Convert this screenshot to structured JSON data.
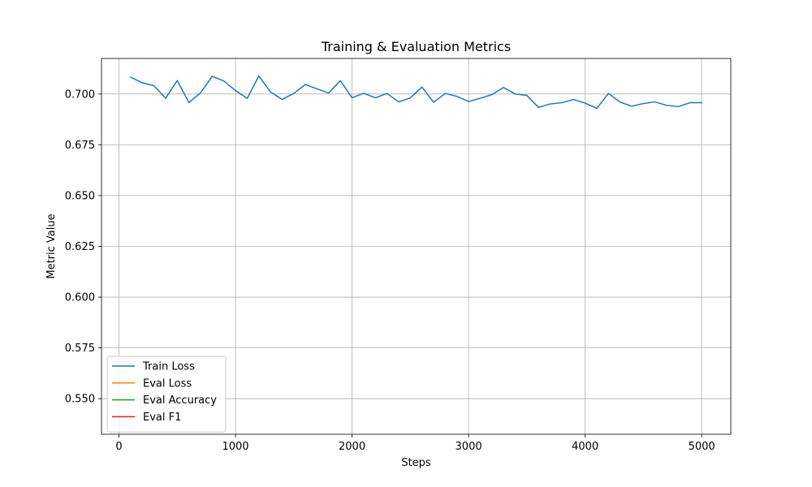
{
  "chart_data": {
    "type": "line",
    "title": "Training & Evaluation Metrics",
    "xlabel": "Steps",
    "ylabel": "Metric Value",
    "xlim": [
      -150,
      5250
    ],
    "ylim": [
      0.5325,
      0.7175
    ],
    "xticks": [
      0,
      1000,
      2000,
      3000,
      4000,
      5000
    ],
    "yticks": [
      0.55,
      0.575,
      0.6,
      0.625,
      0.65,
      0.675,
      0.7
    ],
    "xtick_labels": [
      "0",
      "1000",
      "2000",
      "3000",
      "4000",
      "5000"
    ],
    "ytick_labels": [
      "0.550",
      "0.575",
      "0.600",
      "0.625",
      "0.650",
      "0.675",
      "0.700"
    ],
    "grid": true,
    "legend_position": "lower-left",
    "series": [
      {
        "name": "Train Loss",
        "color": "#1f77b4",
        "x": [
          100,
          200,
          300,
          400,
          500,
          600,
          700,
          800,
          900,
          1000,
          1100,
          1200,
          1300,
          1400,
          1500,
          1600,
          1700,
          1800,
          1900,
          2000,
          2100,
          2200,
          2300,
          2400,
          2500,
          2600,
          2700,
          2800,
          2900,
          3000,
          3100,
          3200,
          3300,
          3400,
          3500,
          3600,
          3700,
          3800,
          3900,
          4000,
          4100,
          4200,
          4300,
          4400,
          4500,
          4600,
          4700,
          4800,
          4900,
          5000
        ],
        "y": [
          0.7083,
          0.7055,
          0.7041,
          0.6979,
          0.7066,
          0.6958,
          0.7006,
          0.7087,
          0.7064,
          0.7017,
          0.6978,
          0.7089,
          0.701,
          0.6973,
          0.7003,
          0.7047,
          0.7025,
          0.7005,
          0.7066,
          0.6981,
          0.7004,
          0.6981,
          0.7003,
          0.6961,
          0.6981,
          0.7034,
          0.6959,
          0.7003,
          0.6988,
          0.6963,
          0.6979,
          0.6997,
          0.7032,
          0.7,
          0.6993,
          0.6934,
          0.6951,
          0.6957,
          0.6973,
          0.6955,
          0.6929,
          0.7003,
          0.696,
          0.694,
          0.6953,
          0.6961,
          0.6944,
          0.6938,
          0.6957,
          0.6957
        ]
      },
      {
        "name": "Eval Loss",
        "color": "#ff7f0e",
        "x": [],
        "y": []
      },
      {
        "name": "Eval Accuracy",
        "color": "#2ca02c",
        "x": [],
        "y": []
      },
      {
        "name": "Eval F1",
        "color": "#d62728",
        "x": [],
        "y": []
      }
    ]
  }
}
